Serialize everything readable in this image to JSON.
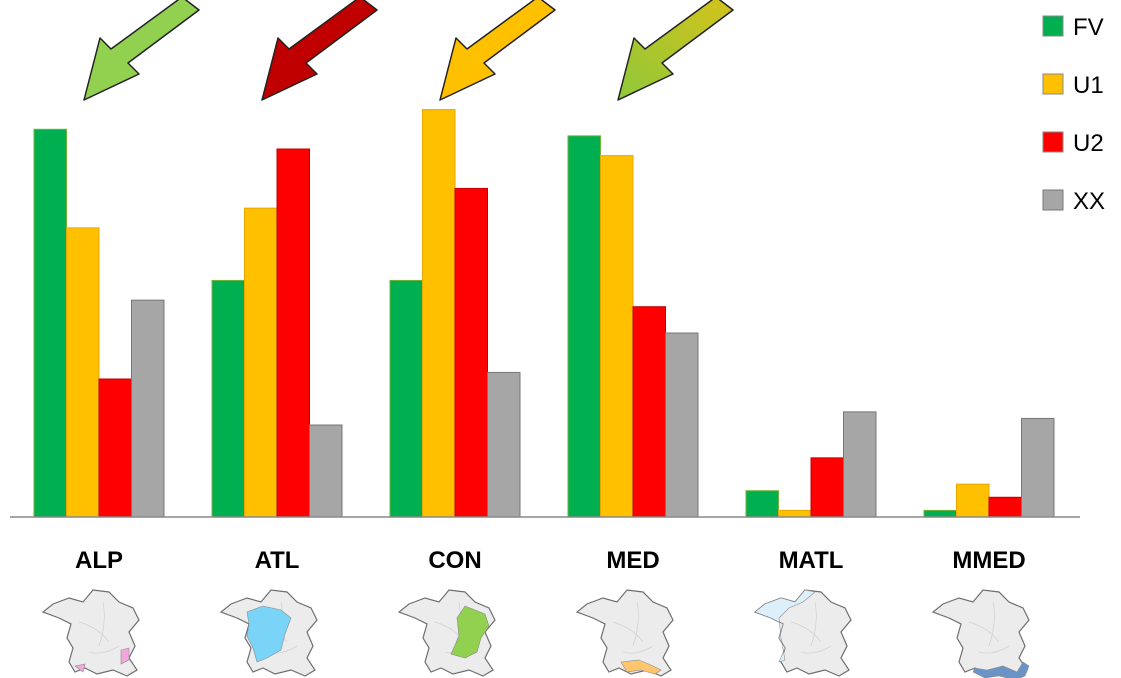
{
  "chart_data": {
    "type": "bar",
    "title": "",
    "xlabel": "",
    "ylabel": "",
    "categories": [
      "ALP",
      "ATL",
      "CON",
      "MED",
      "MATL",
      "MMED"
    ],
    "series": [
      {
        "name": "FV",
        "color": "#00B050",
        "values": [
          59,
          36,
          36,
          58,
          4,
          1
        ]
      },
      {
        "name": "U1",
        "color": "#FFC000",
        "values": [
          44,
          47,
          62,
          55,
          1,
          5
        ]
      },
      {
        "name": "U2",
        "color": "#FF0000",
        "values": [
          21,
          56,
          50,
          32,
          9,
          3
        ]
      },
      {
        "name": "XX",
        "color": "#A6A6A6",
        "values": [
          33,
          14,
          22,
          28,
          16,
          15
        ]
      }
    ],
    "ylim": [
      0,
      63
    ],
    "grid": false,
    "legend": "top-right",
    "trend_arrows": [
      {
        "category": "ALP",
        "color": "#92D050"
      },
      {
        "category": "ATL",
        "color": "#C00000"
      },
      {
        "category": "CON",
        "color": "#FFC000"
      },
      {
        "category": "MED",
        "color": "#B5C535"
      }
    ],
    "region_map_colors": {
      "ALP": "#F4A6DC",
      "ATL": "#79D4F7",
      "CON": "#92D050",
      "MED": "#FFC66E",
      "MATL": "#DDEFFA",
      "MMED": "#6A93C6"
    }
  }
}
